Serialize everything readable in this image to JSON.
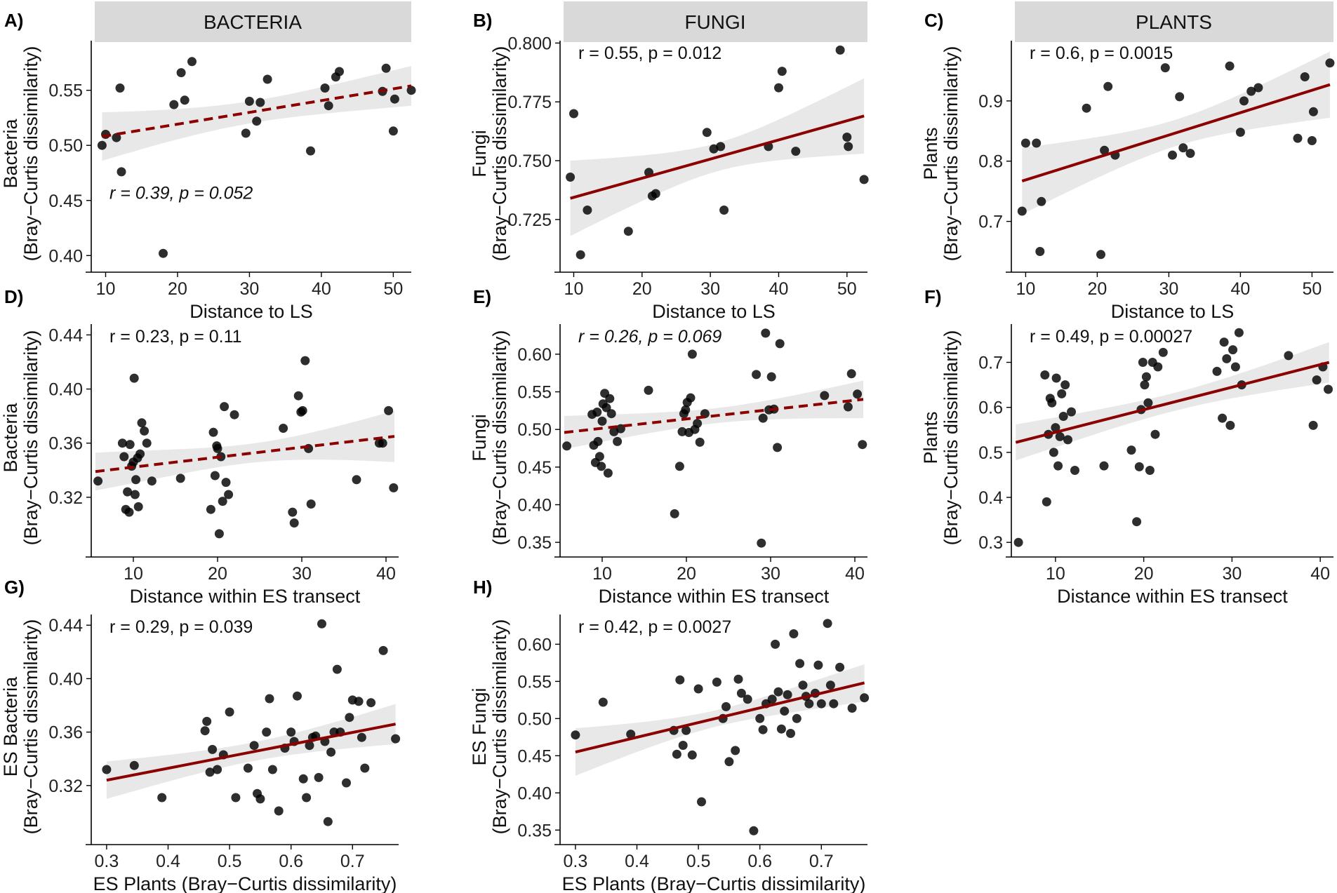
{
  "colors": {
    "fit_line": "#8b0000",
    "points": "#000000",
    "band": "#bdbdbd",
    "strip": "#d9d9d9"
  },
  "chart_data": [
    {
      "id": "A",
      "letter": "A)",
      "type": "scatter",
      "strip": "BACTERIA",
      "ylabel_top": "Bacteria",
      "ylabel_bottom": "(Bray−Curtis dissimilarity)",
      "xlabel": "Distance to LS",
      "xlim": [
        8,
        52.5
      ],
      "ylim": [
        0.39,
        0.595
      ],
      "xticks": [
        10,
        20,
        30,
        40,
        50
      ],
      "xtick_labels": [
        "10",
        "20",
        "30",
        "40",
        "50"
      ],
      "yticks": [
        0.4,
        0.45,
        0.5,
        0.55
      ],
      "ytick_labels": [
        "0.40",
        "0.45",
        "0.50",
        "0.55"
      ],
      "annotation": "r = 0.39, p = 0.052",
      "annotation_italic": true,
      "annotation_pos": "bottom-left",
      "fit": {
        "x": [
          9.5,
          52.5
        ],
        "y": [
          0.508,
          0.554
        ],
        "band_halfwidth_ends": [
          0.022,
          0.018
        ],
        "band_halfwidth_mid": 0.01,
        "dashed": true
      },
      "points": {
        "x": [
          9.5,
          10,
          11.5,
          12,
          12.2,
          18,
          19.5,
          20.5,
          21,
          22,
          29.5,
          30,
          31,
          31.5,
          32.5,
          38.5,
          40.5,
          41,
          42,
          42.5,
          48.5,
          49,
          50,
          50.2,
          52.5
        ],
        "y": [
          0.5,
          0.51,
          0.507,
          0.552,
          0.476,
          0.402,
          0.537,
          0.566,
          0.541,
          0.576,
          0.511,
          0.54,
          0.522,
          0.539,
          0.56,
          0.495,
          0.552,
          0.536,
          0.562,
          0.567,
          0.549,
          0.57,
          0.513,
          0.542,
          0.55
        ]
      }
    },
    {
      "id": "B",
      "letter": "B)",
      "type": "scatter",
      "strip": "FUNGI",
      "ylabel_top": "Fungi",
      "ylabel_bottom": "(Bray−Curtis dissimilarity)",
      "xlabel": "Distance to LS",
      "xlim": [
        8,
        53
      ],
      "ylim": [
        0.705,
        0.801
      ],
      "xticks": [
        10,
        20,
        30,
        40,
        50
      ],
      "xtick_labels": [
        "10",
        "20",
        "30",
        "40",
        "50"
      ],
      "yticks": [
        0.725,
        0.75,
        0.775,
        0.8
      ],
      "ytick_labels": [
        "0.725",
        "0.750",
        "0.775",
        "0.800"
      ],
      "annotation": "r = 0.55, p = 0.012",
      "annotation_italic": false,
      "annotation_pos": "top-left",
      "fit": {
        "x": [
          9.5,
          52.5
        ],
        "y": [
          0.734,
          0.769
        ],
        "band_halfwidth_ends": [
          0.016,
          0.016
        ],
        "band_halfwidth_mid": 0.006,
        "dashed": false
      },
      "points": {
        "x": [
          9.5,
          10,
          11,
          12,
          18,
          21,
          21.5,
          22,
          29.5,
          30.5,
          31.5,
          32,
          38.5,
          40,
          40.5,
          42.5,
          49,
          50,
          50.2,
          52.5
        ],
        "y": [
          0.743,
          0.77,
          0.71,
          0.729,
          0.72,
          0.745,
          0.735,
          0.736,
          0.762,
          0.755,
          0.756,
          0.729,
          0.756,
          0.781,
          0.788,
          0.754,
          0.797,
          0.76,
          0.756,
          0.742
        ]
      }
    },
    {
      "id": "C",
      "letter": "C)",
      "type": "scatter",
      "strip": "PLANTS",
      "ylabel_top": "Plants",
      "ylabel_bottom": "(Bray−Curtis dissimilarity)",
      "xlabel": "Distance to LS",
      "xlim": [
        8,
        53
      ],
      "ylim": [
        0.625,
        1.0
      ],
      "xticks": [
        10,
        20,
        30,
        40,
        50
      ],
      "xtick_labels": [
        "10",
        "20",
        "30",
        "40",
        "50"
      ],
      "yticks": [
        0.7,
        0.8,
        0.9
      ],
      "ytick_labels": [
        "0.7",
        "0.8",
        "0.9"
      ],
      "annotation": "r = 0.6, p = 0.0015",
      "annotation_italic": false,
      "annotation_pos": "top-left",
      "fit": {
        "x": [
          9.5,
          52.5
        ],
        "y": [
          0.767,
          0.927
        ],
        "band_halfwidth_ends": [
          0.055,
          0.055
        ],
        "band_halfwidth_mid": 0.022,
        "dashed": false
      },
      "points": {
        "x": [
          9.5,
          10,
          11.5,
          12,
          12.2,
          18.5,
          20.5,
          21,
          21.5,
          22.5,
          29.5,
          30.5,
          31.5,
          32,
          33,
          38.5,
          40,
          40.5,
          41.5,
          42.5,
          48,
          49,
          50,
          50.2,
          52.5
        ],
        "y": [
          0.717,
          0.83,
          0.83,
          0.65,
          0.733,
          0.888,
          0.645,
          0.818,
          0.924,
          0.81,
          0.955,
          0.81,
          0.907,
          0.822,
          0.813,
          0.958,
          0.848,
          0.9,
          0.916,
          0.922,
          0.838,
          0.94,
          0.834,
          0.882,
          0.963
        ]
      }
    },
    {
      "id": "D",
      "letter": "D)",
      "type": "scatter",
      "strip": "",
      "ylabel_top": "Bacteria",
      "ylabel_bottom": "(Bray−Curtis dissimilarity)",
      "xlabel": "Distance within ES transect",
      "xlim": [
        5,
        41.5
      ],
      "ylim": [
        0.28,
        0.448
      ],
      "xticks": [
        10,
        20,
        30,
        40
      ],
      "xtick_labels": [
        "10",
        "20",
        "30",
        "40"
      ],
      "yticks": [
        0.32,
        0.36,
        0.4,
        0.44
      ],
      "ytick_labels": [
        "0.32",
        "0.36",
        "0.40",
        "0.44"
      ],
      "annotation": "r = 0.23, p = 0.11",
      "annotation_italic": false,
      "annotation_pos": "top-left",
      "fit": {
        "x": [
          5.5,
          41
        ],
        "y": [
          0.339,
          0.365
        ],
        "band_halfwidth_ends": [
          0.014,
          0.019
        ],
        "band_halfwidth_mid": 0.007,
        "dashed": true
      },
      "points": {
        "x": [
          5.8,
          8.7,
          8.9,
          9.1,
          9.3,
          9.5,
          9.6,
          9.8,
          10,
          10.1,
          10.2,
          10.3,
          10.5,
          10.6,
          10.8,
          11,
          11.3,
          11.6,
          12.2,
          15.6,
          19.2,
          19.5,
          19.7,
          19.9,
          20,
          20.2,
          20.4,
          20.6,
          20.8,
          21,
          21.3,
          22,
          27.8,
          28.9,
          29.1,
          29.6,
          29.9,
          30.1,
          30.4,
          30.8,
          31.1,
          36.5,
          39.2,
          39.6,
          40.3,
          40.9
        ],
        "y": [
          0.332,
          0.36,
          0.35,
          0.311,
          0.324,
          0.309,
          0.359,
          0.343,
          0.346,
          0.408,
          0.322,
          0.333,
          0.349,
          0.313,
          0.352,
          0.375,
          0.369,
          0.36,
          0.332,
          0.334,
          0.311,
          0.368,
          0.336,
          0.358,
          0.356,
          0.293,
          0.35,
          0.317,
          0.387,
          0.331,
          0.322,
          0.381,
          0.371,
          0.309,
          0.301,
          0.395,
          0.383,
          0.384,
          0.421,
          0.356,
          0.315,
          0.333,
          0.36,
          0.36,
          0.384,
          0.327
        ]
      }
    },
    {
      "id": "E",
      "letter": "E)",
      "type": "scatter",
      "strip": "",
      "ylabel_top": "Fungi",
      "ylabel_bottom": "(Bray−Curtis dissimilarity)",
      "xlabel": "Distance within ES transect",
      "xlim": [
        5,
        41.5
      ],
      "ylim": [
        0.338,
        0.64
      ],
      "xticks": [
        10,
        20,
        30,
        40
      ],
      "xtick_labels": [
        "10",
        "20",
        "30",
        "40"
      ],
      "yticks": [
        0.35,
        0.4,
        0.45,
        0.5,
        0.55,
        0.6
      ],
      "ytick_labels": [
        "0.35",
        "0.40",
        "0.45",
        "0.50",
        "0.55",
        "0.60"
      ],
      "annotation": "r = 0.26, p = 0.069",
      "annotation_italic": true,
      "annotation_pos": "top-left",
      "fit": {
        "x": [
          5.5,
          41
        ],
        "y": [
          0.496,
          0.54
        ],
        "band_halfwidth_ends": [
          0.022,
          0.025
        ],
        "band_halfwidth_mid": 0.01,
        "dashed": true
      },
      "points": {
        "x": [
          5.8,
          8.8,
          9,
          9.2,
          9.4,
          9.5,
          9.7,
          9.9,
          10,
          10.1,
          10.3,
          10.5,
          10.7,
          10.9,
          11.1,
          11.4,
          11.8,
          12.2,
          15.5,
          18.6,
          19.2,
          19.5,
          19.7,
          19.9,
          20.1,
          20.3,
          20.5,
          20.7,
          21,
          21.3,
          21.6,
          22.2,
          28.3,
          28.9,
          29.1,
          29.4,
          29.8,
          30.1,
          30.4,
          30.8,
          31.1,
          36.4,
          39.2,
          39.6,
          40.3,
          40.9
        ],
        "y": [
          0.478,
          0.52,
          0.479,
          0.456,
          0.523,
          0.484,
          0.464,
          0.451,
          0.511,
          0.534,
          0.548,
          0.529,
          0.442,
          0.541,
          0.521,
          0.497,
          0.484,
          0.501,
          0.552,
          0.388,
          0.451,
          0.497,
          0.521,
          0.526,
          0.536,
          0.496,
          0.542,
          0.6,
          0.5,
          0.508,
          0.483,
          0.521,
          0.573,
          0.349,
          0.515,
          0.628,
          0.526,
          0.57,
          0.527,
          0.476,
          0.614,
          0.545,
          0.53,
          0.574,
          0.547,
          0.48
        ]
      }
    },
    {
      "id": "F",
      "letter": "F)",
      "type": "scatter",
      "strip": "",
      "ylabel_top": "Plants",
      "ylabel_bottom": "(Bray−Curtis dissimilarity)",
      "xlabel": "Distance within ES transect",
      "xlim": [
        5,
        41.5
      ],
      "ylim": [
        0.28,
        0.785
      ],
      "xticks": [
        10,
        20,
        30,
        40
      ],
      "xtick_labels": [
        "10",
        "20",
        "30",
        "40"
      ],
      "yticks": [
        0.3,
        0.4,
        0.5,
        0.6,
        0.7
      ],
      "ytick_labels": [
        "0.3",
        "0.4",
        "0.5",
        "0.6",
        "0.7"
      ],
      "annotation": "r = 0.49, p = 0.00027",
      "annotation_italic": false,
      "annotation_pos": "top-left",
      "fit": {
        "x": [
          5.5,
          41
        ],
        "y": [
          0.522,
          0.7
        ],
        "band_halfwidth_ends": [
          0.04,
          0.045
        ],
        "band_halfwidth_mid": 0.02,
        "dashed": false
      },
      "points": {
        "x": [
          5.8,
          8.8,
          9,
          9.2,
          9.4,
          9.6,
          9.8,
          10,
          10.1,
          10.3,
          10.5,
          10.7,
          10.9,
          11.1,
          11.4,
          11.8,
          12.2,
          15.5,
          18.6,
          19.2,
          19.5,
          19.7,
          19.9,
          20.1,
          20.3,
          20.5,
          20.7,
          21,
          21.3,
          21.6,
          22.2,
          28.3,
          28.9,
          29.1,
          29.4,
          29.8,
          30.1,
          30.4,
          30.8,
          31.1,
          36.4,
          39.2,
          39.6,
          40.3,
          40.9
        ],
        "y": [
          0.3,
          0.672,
          0.39,
          0.54,
          0.62,
          0.61,
          0.5,
          0.555,
          0.665,
          0.47,
          0.535,
          0.63,
          0.58,
          0.65,
          0.528,
          0.59,
          0.46,
          0.47,
          0.505,
          0.346,
          0.468,
          0.595,
          0.7,
          0.65,
          0.668,
          0.61,
          0.46,
          0.7,
          0.54,
          0.69,
          0.722,
          0.68,
          0.576,
          0.745,
          0.708,
          0.56,
          0.728,
          0.69,
          0.766,
          0.65,
          0.715,
          0.56,
          0.661,
          0.69,
          0.64
        ]
      }
    },
    {
      "id": "G",
      "letter": "G)",
      "type": "scatter",
      "strip": "",
      "ylabel_top": "ES Bacteria",
      "ylabel_bottom": "(Bray−Curtis dissimilarity)",
      "xlabel": "ES Plants (Bray−Curtis dissimilarity)",
      "xlim": [
        0.275,
        0.775
      ],
      "ylim": [
        0.28,
        0.448
      ],
      "xticks": [
        0.3,
        0.4,
        0.5,
        0.6,
        0.7
      ],
      "xtick_labels": [
        "0.3",
        "0.4",
        "0.5",
        "0.6",
        "0.7"
      ],
      "yticks": [
        0.32,
        0.36,
        0.4,
        0.44
      ],
      "ytick_labels": [
        "0.32",
        "0.36",
        "0.40",
        "0.44"
      ],
      "annotation": "r = 0.29, p = 0.039",
      "annotation_italic": false,
      "annotation_pos": "top-left",
      "fit": {
        "x": [
          0.3,
          0.77
        ],
        "y": [
          0.324,
          0.366
        ],
        "band_halfwidth_ends": [
          0.014,
          0.015
        ],
        "band_halfwidth_mid": 0.007,
        "dashed": false
      },
      "points": {
        "x": [
          0.3,
          0.345,
          0.39,
          0.46,
          0.463,
          0.468,
          0.472,
          0.48,
          0.49,
          0.5,
          0.51,
          0.53,
          0.54,
          0.545,
          0.55,
          0.56,
          0.565,
          0.57,
          0.58,
          0.59,
          0.6,
          0.605,
          0.61,
          0.62,
          0.625,
          0.63,
          0.635,
          0.64,
          0.645,
          0.65,
          0.655,
          0.66,
          0.665,
          0.67,
          0.675,
          0.68,
          0.69,
          0.695,
          0.7,
          0.71,
          0.715,
          0.72,
          0.73,
          0.75,
          0.77
        ],
        "y": [
          0.332,
          0.335,
          0.311,
          0.361,
          0.368,
          0.33,
          0.347,
          0.332,
          0.343,
          0.375,
          0.311,
          0.333,
          0.35,
          0.314,
          0.31,
          0.36,
          0.385,
          0.332,
          0.301,
          0.348,
          0.36,
          0.353,
          0.387,
          0.325,
          0.311,
          0.35,
          0.356,
          0.357,
          0.326,
          0.441,
          0.353,
          0.293,
          0.345,
          0.36,
          0.407,
          0.36,
          0.322,
          0.371,
          0.384,
          0.383,
          0.356,
          0.333,
          0.382,
          0.421,
          0.355
        ]
      }
    },
    {
      "id": "H",
      "letter": "H)",
      "type": "scatter",
      "strip": "",
      "ylabel_top": "ES Fungi",
      "ylabel_bottom": "(Bray−Curtis dissimilarity)",
      "xlabel": "ES Plants (Bray−Curtis dissimilarity)",
      "xlim": [
        0.275,
        0.775
      ],
      "ylim": [
        0.338,
        0.64
      ],
      "xticks": [
        0.3,
        0.4,
        0.5,
        0.6,
        0.7
      ],
      "xtick_labels": [
        "0.3",
        "0.4",
        "0.5",
        "0.6",
        "0.7"
      ],
      "yticks": [
        0.35,
        0.4,
        0.45,
        0.5,
        0.55,
        0.6
      ],
      "ytick_labels": [
        "0.35",
        "0.40",
        "0.45",
        "0.50",
        "0.55",
        "0.60"
      ],
      "annotation": "r = 0.42, p = 0.0027",
      "annotation_italic": false,
      "annotation_pos": "top-left",
      "fit": {
        "x": [
          0.3,
          0.77
        ],
        "y": [
          0.455,
          0.548
        ],
        "band_halfwidth_ends": [
          0.032,
          0.025
        ],
        "band_halfwidth_mid": 0.011,
        "dashed": false
      },
      "points": {
        "x": [
          0.3,
          0.345,
          0.39,
          0.46,
          0.465,
          0.47,
          0.475,
          0.48,
          0.49,
          0.5,
          0.505,
          0.53,
          0.54,
          0.545,
          0.55,
          0.56,
          0.565,
          0.57,
          0.58,
          0.59,
          0.6,
          0.605,
          0.61,
          0.62,
          0.625,
          0.63,
          0.635,
          0.64,
          0.645,
          0.65,
          0.655,
          0.66,
          0.665,
          0.67,
          0.675,
          0.68,
          0.69,
          0.695,
          0.7,
          0.71,
          0.715,
          0.72,
          0.73,
          0.75,
          0.77
        ],
        "y": [
          0.478,
          0.522,
          0.479,
          0.484,
          0.452,
          0.552,
          0.464,
          0.484,
          0.451,
          0.54,
          0.388,
          0.549,
          0.5,
          0.516,
          0.442,
          0.457,
          0.553,
          0.534,
          0.526,
          0.349,
          0.5,
          0.485,
          0.52,
          0.526,
          0.6,
          0.536,
          0.486,
          0.51,
          0.532,
          0.48,
          0.614,
          0.5,
          0.574,
          0.545,
          0.53,
          0.52,
          0.534,
          0.572,
          0.52,
          0.628,
          0.545,
          0.52,
          0.569,
          0.514,
          0.528
        ]
      }
    }
  ]
}
